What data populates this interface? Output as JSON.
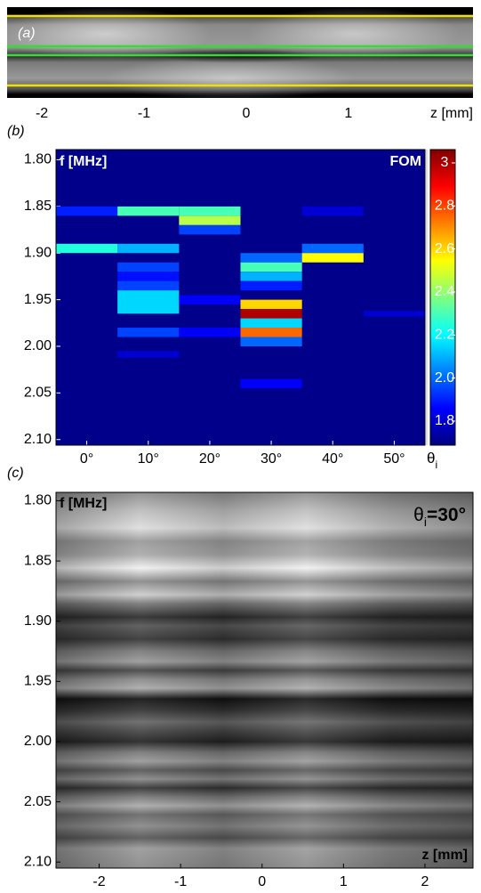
{
  "panel_labels": [
    "(a)",
    "(b)",
    "(c)"
  ],
  "chart_data": [
    {
      "type": "image",
      "xlabel": "z [mm]",
      "xlim": [
        -2.34,
        2.22
      ],
      "xticks": [
        -2,
        -1,
        0,
        1
      ]
    },
    {
      "type": "heatmap",
      "ylabel": "f [MHz]",
      "colorbar_label": "FOM",
      "xlabel": "θ",
      "xlabel_subscript": "i",
      "colormap": "jet",
      "background_color": "#00008b",
      "xlim": [
        -5,
        55
      ],
      "ylim": [
        2.106,
        1.789
      ],
      "xticks": [
        {
          "value": 0,
          "label": "0°"
        },
        {
          "value": 10,
          "label": "10°"
        },
        {
          "value": 20,
          "label": "20°"
        },
        {
          "value": 30,
          "label": "30°"
        },
        {
          "value": 40,
          "label": "40°"
        },
        {
          "value": 50,
          "label": "50°"
        }
      ],
      "yticks": [
        {
          "value": 1.8,
          "label": "1.80"
        },
        1.85,
        {
          "value": 1.9,
          "label": "1.90"
        },
        1.95,
        {
          "value": 2,
          "label": "2.00"
        },
        2.05,
        {
          "value": 2.1,
          "label": "2.10"
        }
      ],
      "clim": [
        1.688,
        3.062
      ],
      "cticks": [
        1.8,
        {
          "value": 2,
          "label": "2.0"
        },
        2.2,
        2.4,
        2.6,
        2.8,
        3
      ],
      "cells": [
        {
          "theta": [
            -5,
            5
          ],
          "f": [
            1.85,
            1.86
          ],
          "value": 1.9
        },
        {
          "theta": [
            -5,
            5
          ],
          "f": [
            1.89,
            1.9
          ],
          "value": 2.25
        },
        {
          "theta": [
            5,
            15
          ],
          "f": [
            1.85,
            1.86
          ],
          "value": 2.3
        },
        {
          "theta": [
            5,
            15
          ],
          "f": [
            1.89,
            1.9
          ],
          "value": 2.1
        },
        {
          "theta": [
            5,
            15
          ],
          "f": [
            1.91,
            1.92
          ],
          "value": 1.95
        },
        {
          "theta": [
            5,
            15
          ],
          "f": [
            1.92,
            1.93
          ],
          "value": 1.88
        },
        {
          "theta": [
            5,
            15
          ],
          "f": [
            1.93,
            1.94
          ],
          "value": 1.95
        },
        {
          "theta": [
            5,
            15
          ],
          "f": [
            1.94,
            1.965
          ],
          "value": 2.15
        },
        {
          "theta": [
            5,
            15
          ],
          "f": [
            1.98,
            1.99
          ],
          "value": 1.95
        },
        {
          "theta": [
            5,
            15
          ],
          "f": [
            2.005,
            2.012
          ],
          "value": 1.8
        },
        {
          "theta": [
            15,
            25
          ],
          "f": [
            1.85,
            1.86
          ],
          "value": 2.3
        },
        {
          "theta": [
            15,
            25
          ],
          "f": [
            1.86,
            1.87
          ],
          "value": 2.45
        },
        {
          "theta": [
            15,
            25
          ],
          "f": [
            1.87,
            1.88
          ],
          "value": 1.95
        },
        {
          "theta": [
            15,
            25
          ],
          "f": [
            1.945,
            1.955
          ],
          "value": 1.85
        },
        {
          "theta": [
            15,
            25
          ],
          "f": [
            1.98,
            1.99
          ],
          "value": 1.85
        },
        {
          "theta": [
            25,
            35
          ],
          "f": [
            1.9,
            1.91
          ],
          "value": 2
        },
        {
          "theta": [
            25,
            35
          ],
          "f": [
            1.91,
            1.92
          ],
          "value": 2.3
        },
        {
          "theta": [
            25,
            35
          ],
          "f": [
            1.92,
            1.93
          ],
          "value": 2.1
        },
        {
          "theta": [
            25,
            35
          ],
          "f": [
            1.93,
            1.94
          ],
          "value": 1.9
        },
        {
          "theta": [
            25,
            35
          ],
          "f": [
            1.95,
            1.96
          ],
          "value": 2.6
        },
        {
          "theta": [
            25,
            35
          ],
          "f": [
            1.96,
            1.97
          ],
          "value": 3
        },
        {
          "theta": [
            25,
            35
          ],
          "f": [
            1.97,
            1.98
          ],
          "value": 2.15
        },
        {
          "theta": [
            25,
            35
          ],
          "f": [
            1.98,
            1.99
          ],
          "value": 2.75
        },
        {
          "theta": [
            25,
            35
          ],
          "f": [
            1.99,
            2
          ],
          "value": 2
        },
        {
          "theta": [
            25,
            35
          ],
          "f": [
            2.035,
            2.045
          ],
          "value": 1.85
        },
        {
          "theta": [
            35,
            45
          ],
          "f": [
            1.85,
            1.86
          ],
          "value": 1.8
        },
        {
          "theta": [
            35,
            45
          ],
          "f": [
            1.89,
            1.9
          ],
          "value": 2
        },
        {
          "theta": [
            35,
            45
          ],
          "f": [
            1.9,
            1.91
          ],
          "value": 2.55
        },
        {
          "theta": [
            45,
            55
          ],
          "f": [
            1.962,
            1.968
          ],
          "value": 1.8
        }
      ]
    },
    {
      "type": "image",
      "ylabel": "f [MHz]",
      "xlabel": "z [mm]",
      "annotation": {
        "symbol": "θ",
        "subscript": "i",
        "text": "=30°"
      },
      "xlim": [
        -2.53,
        2.59
      ],
      "ylim": [
        2.105,
        1.793
      ],
      "xticks": [
        -2,
        -1,
        0,
        1,
        2
      ],
      "yticks": [
        {
          "value": 1.8,
          "label": "1.80"
        },
        1.85,
        {
          "value": 1.9,
          "label": "1.90"
        },
        1.95,
        {
          "value": 2,
          "label": "2.00"
        },
        2.05,
        {
          "value": 2.1,
          "label": "2.10"
        }
      ]
    }
  ]
}
